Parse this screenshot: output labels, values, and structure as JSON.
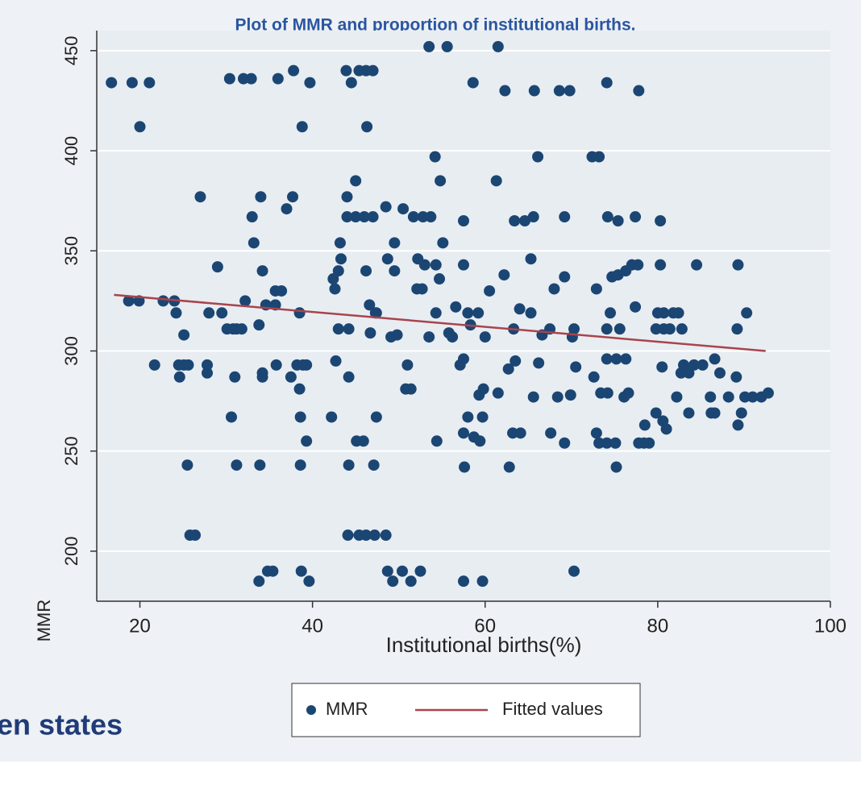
{
  "chart_data": {
    "type": "scatter",
    "title": "Plot of MMR and proportion of institutional births.",
    "x_label": "Institutional births(%)",
    "y_label": "MMR",
    "background_text": "en states",
    "xlim": [
      15,
      100
    ],
    "ylim": [
      175,
      460
    ],
    "xticks": [
      20,
      40,
      60,
      80,
      100
    ],
    "yticks": [
      200,
      250,
      300,
      350,
      400,
      450
    ],
    "grid": true,
    "legend": "bottom",
    "series": [
      {
        "name": "MMR",
        "color": "#1b4673",
        "x": [
          16.7,
          19.1,
          21.1,
          20,
          30.4,
          32,
          32.9,
          36,
          37.8,
          39.7,
          38.8,
          43.9,
          44.5,
          45.4,
          46.2,
          46.3,
          47,
          53.5,
          55.6,
          61.5,
          58.6,
          62.3,
          65.7,
          68.6,
          69.8,
          74.1,
          77.8,
          54.2,
          66.1,
          72.4,
          73.2,
          54.8,
          61.3,
          45,
          27,
          34,
          37.7,
          37,
          44,
          33,
          44,
          45,
          46,
          47,
          48.5,
          50.5,
          51.7,
          52.8,
          53.7,
          57.5,
          63.4,
          64.6,
          65.6,
          69.2,
          74.2,
          75.4,
          77.4,
          80.3,
          33.2,
          43.2,
          49.5,
          55.1,
          65.3,
          29,
          34.2,
          43.3,
          43,
          42.4,
          46.2,
          48.7,
          49.5,
          52.2,
          53,
          54.3,
          54.7,
          57.5,
          62.2,
          69.2,
          72.9,
          74.7,
          75.4,
          76.3,
          77,
          77.7,
          80.3,
          84.5,
          89.3,
          35.7,
          36.4,
          42.6,
          46.6,
          47.3,
          52.1,
          52.7,
          60.5,
          68,
          18.7,
          19.9,
          22.7,
          24,
          24.2,
          32.2,
          34.6,
          35.7,
          38.5,
          47.4,
          54.3,
          56.6,
          58,
          59.2,
          64,
          65.3,
          74.5,
          77.4,
          80,
          80.7,
          81.8,
          82.4,
          28,
          29.5,
          30.1,
          30.8,
          31.2,
          31.8,
          33.8,
          43,
          44.2,
          46.7,
          49.1,
          49.8,
          53.5,
          55.8,
          56.2,
          58.3,
          60,
          63.3,
          66.6,
          67.5,
          70.3,
          70.1,
          74.1,
          75.6,
          79.8,
          80.7,
          81.4,
          82.8,
          89.2,
          90.3,
          25.1,
          21.7,
          24.5,
          25.1,
          25.6,
          24.6,
          27.8,
          27.8,
          31,
          34.2,
          34.2,
          35.8,
          37.5,
          38.2,
          38.9,
          39.3,
          42.7,
          44.2,
          51,
          57.1,
          57.5,
          62.7,
          63.5,
          66.2,
          70.5,
          72.6,
          74.1,
          75.2,
          76.3,
          80.5,
          82.7,
          83,
          83.6,
          84.2,
          85.2,
          86.6,
          87.2,
          89.1,
          50.8,
          51.4,
          59.3,
          59.8,
          61.5,
          65.6,
          68.4,
          69.9,
          73.4,
          74.2,
          76.1,
          76.6,
          82.2,
          86.1,
          88.2,
          90.1,
          91,
          92,
          92.8,
          38.5,
          30.6,
          38.6,
          42.2,
          47.4,
          58,
          59.7,
          80.6,
          81,
          79.8,
          83.6,
          86.2,
          86.6,
          89.3,
          89.7,
          78.5,
          39.3,
          45.1,
          45.9,
          54.4,
          57.5,
          58.7,
          59.4,
          63.2,
          64.1,
          67.6,
          69.2,
          72.9,
          73.2,
          74.1,
          75.1,
          77.8,
          78.4,
          79,
          25.5,
          31.2,
          33.9,
          38.6,
          44.2,
          47.1,
          57.6,
          62.8,
          75.2,
          25.8,
          26.4,
          44.1,
          45.4,
          46.2,
          47.2,
          48.5,
          34.8,
          35.4,
          38.7,
          48.7,
          50.4,
          52.5,
          70.3,
          33.8,
          39.6,
          49.3,
          51.4,
          57.5,
          59.7
        ],
        "values": [
          434,
          434,
          434,
          412,
          436,
          436,
          436,
          436,
          440,
          434,
          412,
          440,
          434,
          440,
          440,
          412,
          440,
          452,
          452,
          452,
          434,
          430,
          430,
          430,
          430,
          434,
          430,
          397,
          397,
          397,
          397,
          385,
          385,
          385,
          377,
          377,
          377,
          371,
          377,
          367,
          367,
          367,
          367,
          367,
          372,
          371,
          367,
          367,
          367,
          365,
          365,
          365,
          367,
          367,
          367,
          365,
          367,
          365,
          354,
          354,
          354,
          354,
          346,
          342,
          340,
          346,
          340,
          336,
          340,
          346,
          340,
          346,
          343,
          343,
          336,
          343,
          338,
          337,
          331,
          337,
          338,
          340,
          343,
          343,
          343,
          343,
          343,
          330,
          330,
          331,
          323,
          319,
          331,
          331,
          330,
          331,
          325,
          325,
          325,
          325,
          319,
          325,
          323,
          323,
          319,
          319,
          319,
          322,
          319,
          319,
          321,
          319,
          319,
          322,
          319,
          319,
          319,
          319,
          319,
          319,
          311,
          311,
          311,
          311,
          313,
          311,
          311,
          309,
          307,
          308,
          307,
          309,
          307,
          313,
          307,
          311,
          308,
          311,
          311,
          307,
          311,
          311,
          311,
          311,
          311,
          311,
          311,
          319,
          308,
          293,
          293,
          293,
          293,
          287,
          289,
          293,
          287,
          289,
          287,
          293,
          287,
          293,
          293,
          293,
          295,
          287,
          293,
          293,
          296,
          291,
          295,
          294,
          292,
          287,
          296,
          296,
          296,
          292,
          289,
          293,
          289,
          293,
          293,
          296,
          289,
          287,
          281,
          281,
          278,
          281,
          279,
          277,
          277,
          278,
          279,
          279,
          277,
          279,
          277,
          277,
          277,
          277,
          277,
          277,
          279,
          281,
          267,
          267,
          267,
          267,
          267,
          267,
          265,
          261,
          269,
          269,
          269,
          269,
          263,
          269,
          263,
          255,
          255,
          255,
          255,
          259,
          257,
          255,
          259,
          259,
          259,
          254,
          259,
          254,
          254,
          254,
          254,
          254,
          254,
          243,
          243,
          243,
          243,
          243,
          243,
          242,
          242,
          242,
          208,
          208,
          208,
          208,
          208,
          208,
          208,
          190,
          190,
          190,
          190,
          190,
          190,
          190,
          185,
          185,
          185,
          185,
          185,
          185
        ]
      },
      {
        "name": "Fitted values",
        "color": "#a8444c",
        "type": "line",
        "x": [
          17,
          92.5
        ],
        "values": [
          328,
          300
        ]
      }
    ]
  }
}
